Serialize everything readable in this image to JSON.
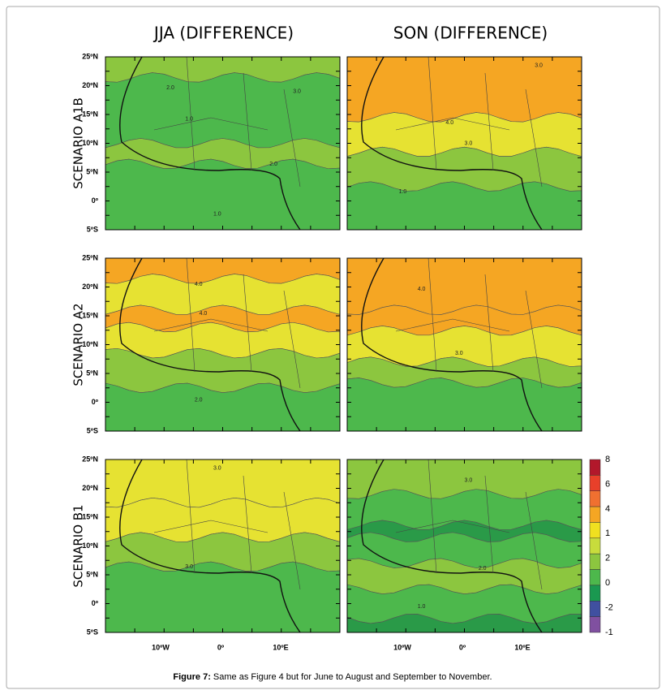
{
  "column_titles": [
    "JJA (DIFFERENCE)",
    "SON (DIFFERENCE)"
  ],
  "row_labels": [
    "SCENARIO  A1B",
    "SCENARIO  A2",
    "SCENARIO  B1"
  ],
  "lat_labels": [
    "25ºN",
    "20ºN",
    "15ºN",
    "10ºN",
    "5ºN",
    "0º",
    "5ºS"
  ],
  "lon_labels": [
    "10ºW",
    "0º",
    "10ºE"
  ],
  "colorbar_labels": [
    "8",
    "6",
    "4",
    "1",
    "2",
    "0",
    "-2",
    "-1"
  ],
  "contour_labels": [
    [
      "2.0",
      "3.0",
      "1.0",
      "2.0",
      "1.0"
    ],
    [
      "3.0",
      "4.0",
      "3.0",
      "1.0"
    ],
    [
      "4.0",
      "4.0",
      "2.0"
    ],
    [
      "4.0",
      "3.0"
    ],
    [
      "3.0",
      "3.0"
    ],
    [
      "3.0",
      "2.0",
      "1.0"
    ]
  ],
  "caption": {
    "label": "Figure 7:",
    "text": "Same as Figure 4 but for June to August and September to November."
  }
}
